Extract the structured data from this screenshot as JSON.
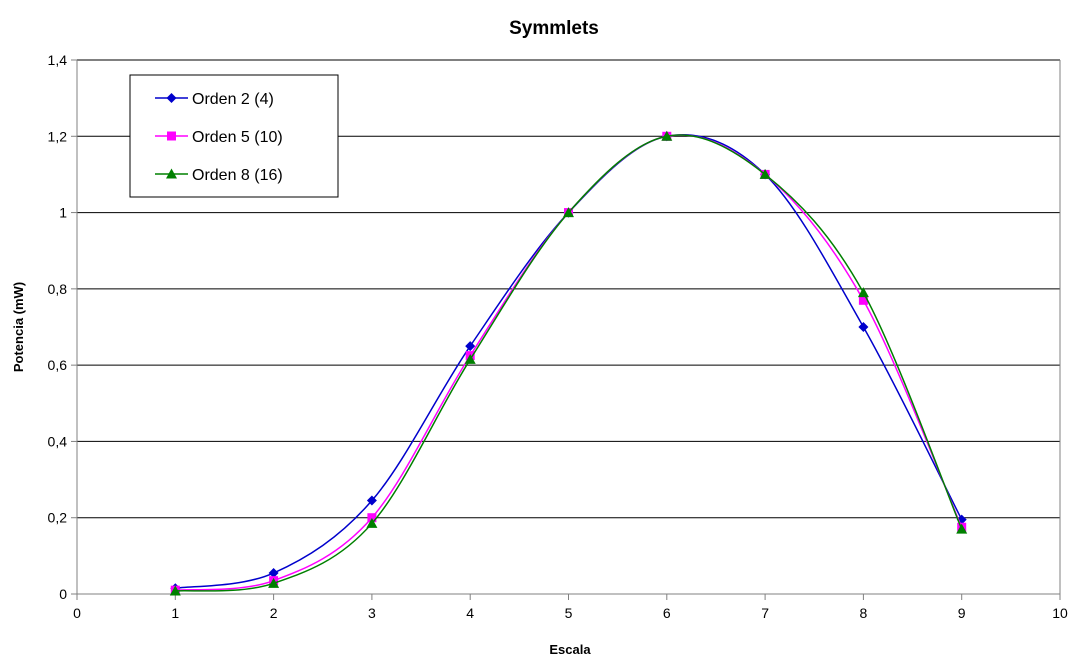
{
  "chart_data": {
    "type": "line",
    "title": "Symmlets",
    "xlabel": "Escala",
    "ylabel": "Potencia (mW)",
    "xlim": [
      0,
      10
    ],
    "ylim": [
      0,
      1.4
    ],
    "x_ticks": [
      "0",
      "1",
      "2",
      "3",
      "4",
      "5",
      "6",
      "7",
      "8",
      "9",
      "10"
    ],
    "y_ticks": [
      "0",
      "0,2",
      "0,4",
      "0,6",
      "0,8",
      "1",
      "1,2",
      "1,4"
    ],
    "grid": "horizontal",
    "smooth": true,
    "legend_position": "top-left",
    "x": [
      1,
      2,
      3,
      4,
      5,
      6,
      7,
      8,
      9
    ],
    "series": [
      {
        "name": "Orden 2 (4)",
        "color": "#0000CC",
        "marker": "diamond",
        "values": [
          0.015,
          0.055,
          0.245,
          0.65,
          1.0,
          1.2,
          1.1,
          0.7,
          0.195
        ]
      },
      {
        "name": "Orden 5 (10)",
        "color": "#FF00FF",
        "marker": "square",
        "values": [
          0.01,
          0.035,
          0.2,
          0.625,
          1.0,
          1.2,
          1.1,
          0.77,
          0.175
        ]
      },
      {
        "name": "Orden 8 (16)",
        "color": "#008000",
        "marker": "triangle",
        "values": [
          0.008,
          0.028,
          0.185,
          0.615,
          1.0,
          1.2,
          1.1,
          0.79,
          0.17
        ]
      }
    ]
  }
}
